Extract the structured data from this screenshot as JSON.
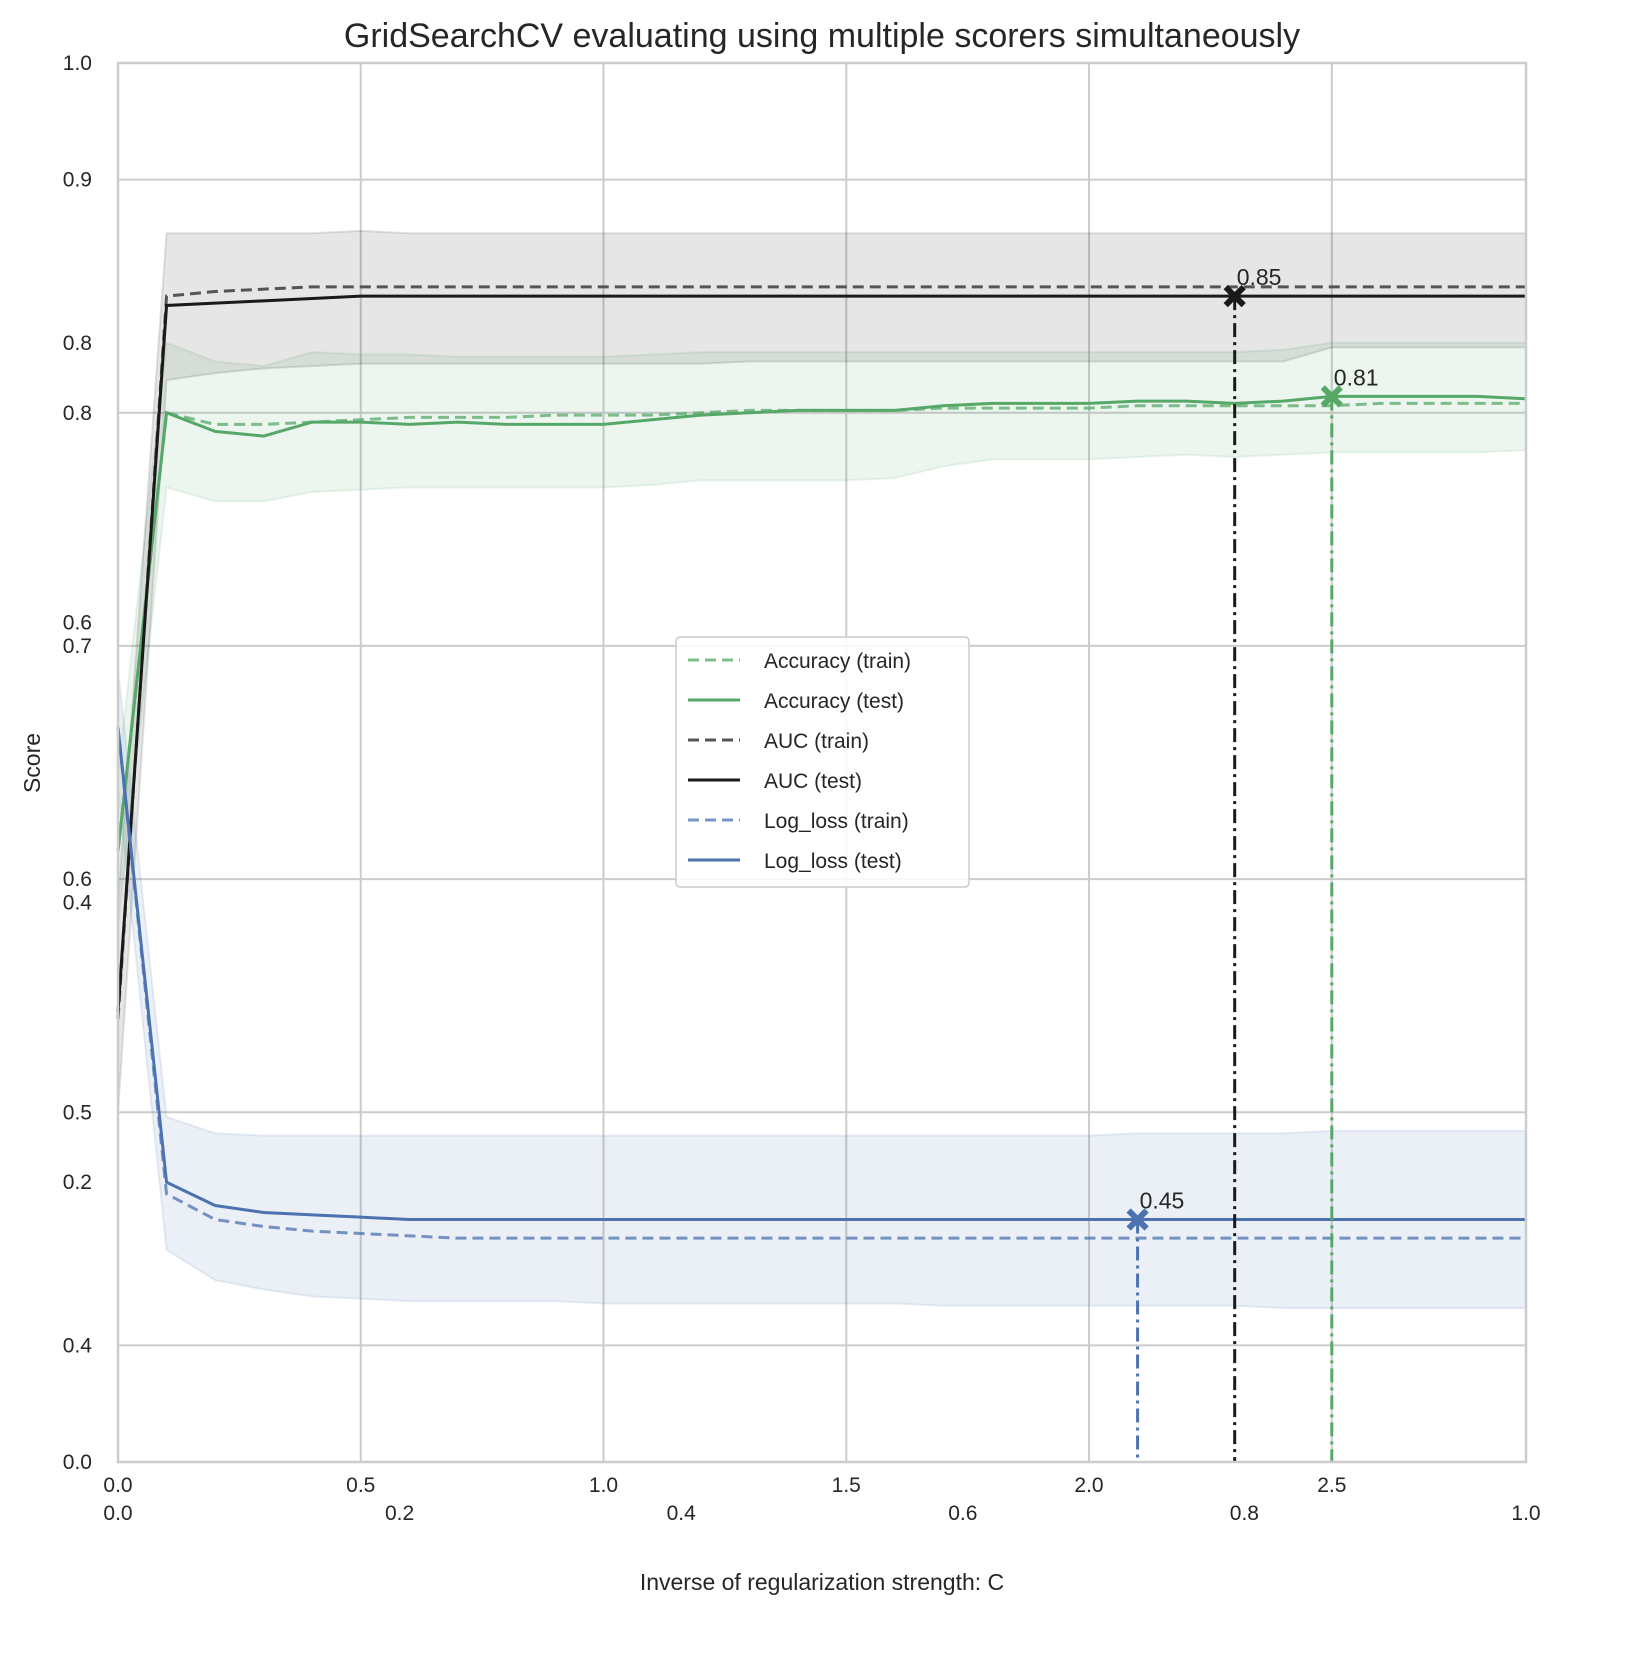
{
  "chart_data": {
    "type": "line",
    "title": "GridSearchCV evaluating using multiple scorers simultaneously",
    "xlabel": "Inverse of regularization strength: C",
    "ylabel": "Score",
    "xlim": [
      0,
      2.9
    ],
    "ylim": [
      0.35,
      0.95
    ],
    "xticks": [
      "0.0",
      "0.5",
      "1.0",
      "1.5",
      "2.0",
      "2.5"
    ],
    "yticks": [
      "0.4",
      "0.5",
      "0.6",
      "0.7",
      "0.8",
      "0.9"
    ],
    "xticks_secondary": [
      "0.0",
      "0.2",
      "0.4",
      "0.6",
      "0.8",
      "1.0"
    ],
    "yticks_secondary": [
      "0.0",
      "0.2",
      "0.4",
      "0.6",
      "0.8",
      "1.0"
    ],
    "grid": true,
    "legend_position": "center",
    "x": [
      0,
      0.1,
      0.2,
      0.3,
      0.4,
      0.5,
      0.6,
      0.7,
      0.8,
      0.9,
      1.0,
      1.1,
      1.2,
      1.3,
      1.4,
      1.5,
      1.6,
      1.7,
      1.8,
      1.9,
      2.0,
      2.1,
      2.2,
      2.3,
      2.4,
      2.5,
      2.6,
      2.7,
      2.8,
      2.9
    ],
    "series": [
      {
        "name": "Accuracy (train)",
        "color": "#55a868",
        "style": "dashed",
        "alpha": 0.75,
        "values": [
          0.612,
          0.8,
          0.795,
          0.795,
          0.796,
          0.797,
          0.798,
          0.798,
          0.798,
          0.799,
          0.799,
          0.799,
          0.8,
          0.801,
          0.801,
          0.801,
          0.801,
          0.802,
          0.802,
          0.802,
          0.802,
          0.803,
          0.803,
          0.803,
          0.803,
          0.803,
          0.804,
          0.804,
          0.804,
          0.804
        ]
      },
      {
        "name": "Accuracy (test)",
        "color": "#55a868",
        "style": "solid",
        "values": [
          0.612,
          0.8,
          0.792,
          0.79,
          0.796,
          0.796,
          0.795,
          0.796,
          0.795,
          0.795,
          0.795,
          0.797,
          0.799,
          0.8,
          0.801,
          0.801,
          0.801,
          0.803,
          0.804,
          0.804,
          0.804,
          0.805,
          0.805,
          0.804,
          0.805,
          0.807,
          0.807,
          0.807,
          0.807,
          0.806
        ],
        "band_lower": [
          0.58,
          0.768,
          0.762,
          0.762,
          0.766,
          0.767,
          0.768,
          0.768,
          0.768,
          0.768,
          0.768,
          0.769,
          0.771,
          0.771,
          0.771,
          0.771,
          0.772,
          0.777,
          0.78,
          0.78,
          0.78,
          0.781,
          0.782,
          0.781,
          0.782,
          0.783,
          0.783,
          0.783,
          0.783,
          0.784
        ],
        "band_upper": [
          0.645,
          0.83,
          0.822,
          0.82,
          0.826,
          0.825,
          0.825,
          0.824,
          0.824,
          0.824,
          0.824,
          0.825,
          0.826,
          0.826,
          0.826,
          0.826,
          0.826,
          0.826,
          0.826,
          0.826,
          0.826,
          0.826,
          0.826,
          0.826,
          0.827,
          0.83,
          0.83,
          0.83,
          0.83,
          0.83
        ]
      },
      {
        "name": "AUC (train)",
        "color": "#555555",
        "style": "dashed",
        "values": [
          0.54,
          0.85,
          0.852,
          0.853,
          0.854,
          0.854,
          0.854,
          0.854,
          0.854,
          0.854,
          0.854,
          0.854,
          0.854,
          0.854,
          0.854,
          0.854,
          0.854,
          0.854,
          0.854,
          0.854,
          0.854,
          0.854,
          0.854,
          0.854,
          0.854,
          0.854,
          0.854,
          0.854,
          0.854,
          0.854
        ]
      },
      {
        "name": "AUC (test)",
        "color": "#1a1a1a",
        "style": "solid",
        "values": [
          0.543,
          0.846,
          0.847,
          0.848,
          0.849,
          0.85,
          0.85,
          0.85,
          0.85,
          0.85,
          0.85,
          0.85,
          0.85,
          0.85,
          0.85,
          0.85,
          0.85,
          0.85,
          0.85,
          0.85,
          0.85,
          0.85,
          0.85,
          0.85,
          0.85,
          0.85,
          0.85,
          0.85,
          0.85,
          0.85
        ],
        "band_lower": [
          0.5,
          0.814,
          0.817,
          0.819,
          0.82,
          0.821,
          0.821,
          0.821,
          0.821,
          0.821,
          0.821,
          0.821,
          0.821,
          0.822,
          0.822,
          0.822,
          0.822,
          0.822,
          0.822,
          0.822,
          0.822,
          0.822,
          0.822,
          0.822,
          0.822,
          0.828,
          0.828,
          0.828,
          0.828,
          0.828
        ],
        "band_upper": [
          0.59,
          0.877,
          0.877,
          0.877,
          0.877,
          0.878,
          0.877,
          0.877,
          0.877,
          0.877,
          0.877,
          0.877,
          0.877,
          0.877,
          0.877,
          0.877,
          0.877,
          0.877,
          0.877,
          0.877,
          0.877,
          0.877,
          0.877,
          0.877,
          0.877,
          0.877,
          0.877,
          0.877,
          0.877,
          0.877
        ]
      },
      {
        "name": "Log_loss (train)",
        "color": "#4c72b0",
        "style": "dashed",
        "alpha": 0.75,
        "values": [
          0.665,
          0.465,
          0.454,
          0.451,
          0.449,
          0.448,
          0.447,
          0.446,
          0.446,
          0.446,
          0.446,
          0.446,
          0.446,
          0.446,
          0.446,
          0.446,
          0.446,
          0.446,
          0.446,
          0.446,
          0.446,
          0.446,
          0.446,
          0.446,
          0.446,
          0.446,
          0.446,
          0.446,
          0.446,
          0.446
        ]
      },
      {
        "name": "Log_loss (test)",
        "color": "#4c72b0",
        "style": "solid",
        "values": [
          0.665,
          0.47,
          0.46,
          0.457,
          0.456,
          0.455,
          0.454,
          0.454,
          0.454,
          0.454,
          0.454,
          0.454,
          0.454,
          0.454,
          0.454,
          0.454,
          0.454,
          0.454,
          0.454,
          0.454,
          0.454,
          0.454,
          0.454,
          0.454,
          0.454,
          0.454,
          0.454,
          0.454,
          0.454,
          0.454
        ],
        "band_lower": [
          0.64,
          0.441,
          0.428,
          0.424,
          0.421,
          0.42,
          0.419,
          0.419,
          0.419,
          0.419,
          0.418,
          0.418,
          0.418,
          0.418,
          0.418,
          0.418,
          0.418,
          0.417,
          0.417,
          0.417,
          0.417,
          0.417,
          0.417,
          0.417,
          0.416,
          0.416,
          0.416,
          0.416,
          0.416,
          0.416
        ],
        "band_upper": [
          0.69,
          0.498,
          0.491,
          0.49,
          0.49,
          0.49,
          0.49,
          0.49,
          0.49,
          0.49,
          0.49,
          0.49,
          0.49,
          0.49,
          0.49,
          0.49,
          0.49,
          0.49,
          0.49,
          0.49,
          0.49,
          0.491,
          0.491,
          0.491,
          0.491,
          0.492,
          0.492,
          0.492,
          0.492,
          0.492
        ]
      }
    ],
    "best_points": [
      {
        "scorer": "AUC",
        "x": 2.3,
        "y": 0.85,
        "label": "0.85",
        "color": "#1a1a1a"
      },
      {
        "scorer": "Accuracy",
        "x": 2.5,
        "y": 0.807,
        "label": "0.81",
        "color": "#55a868"
      },
      {
        "scorer": "Log_loss",
        "x": 2.1,
        "y": 0.454,
        "label": "0.45",
        "color": "#4c72b0"
      }
    ]
  }
}
